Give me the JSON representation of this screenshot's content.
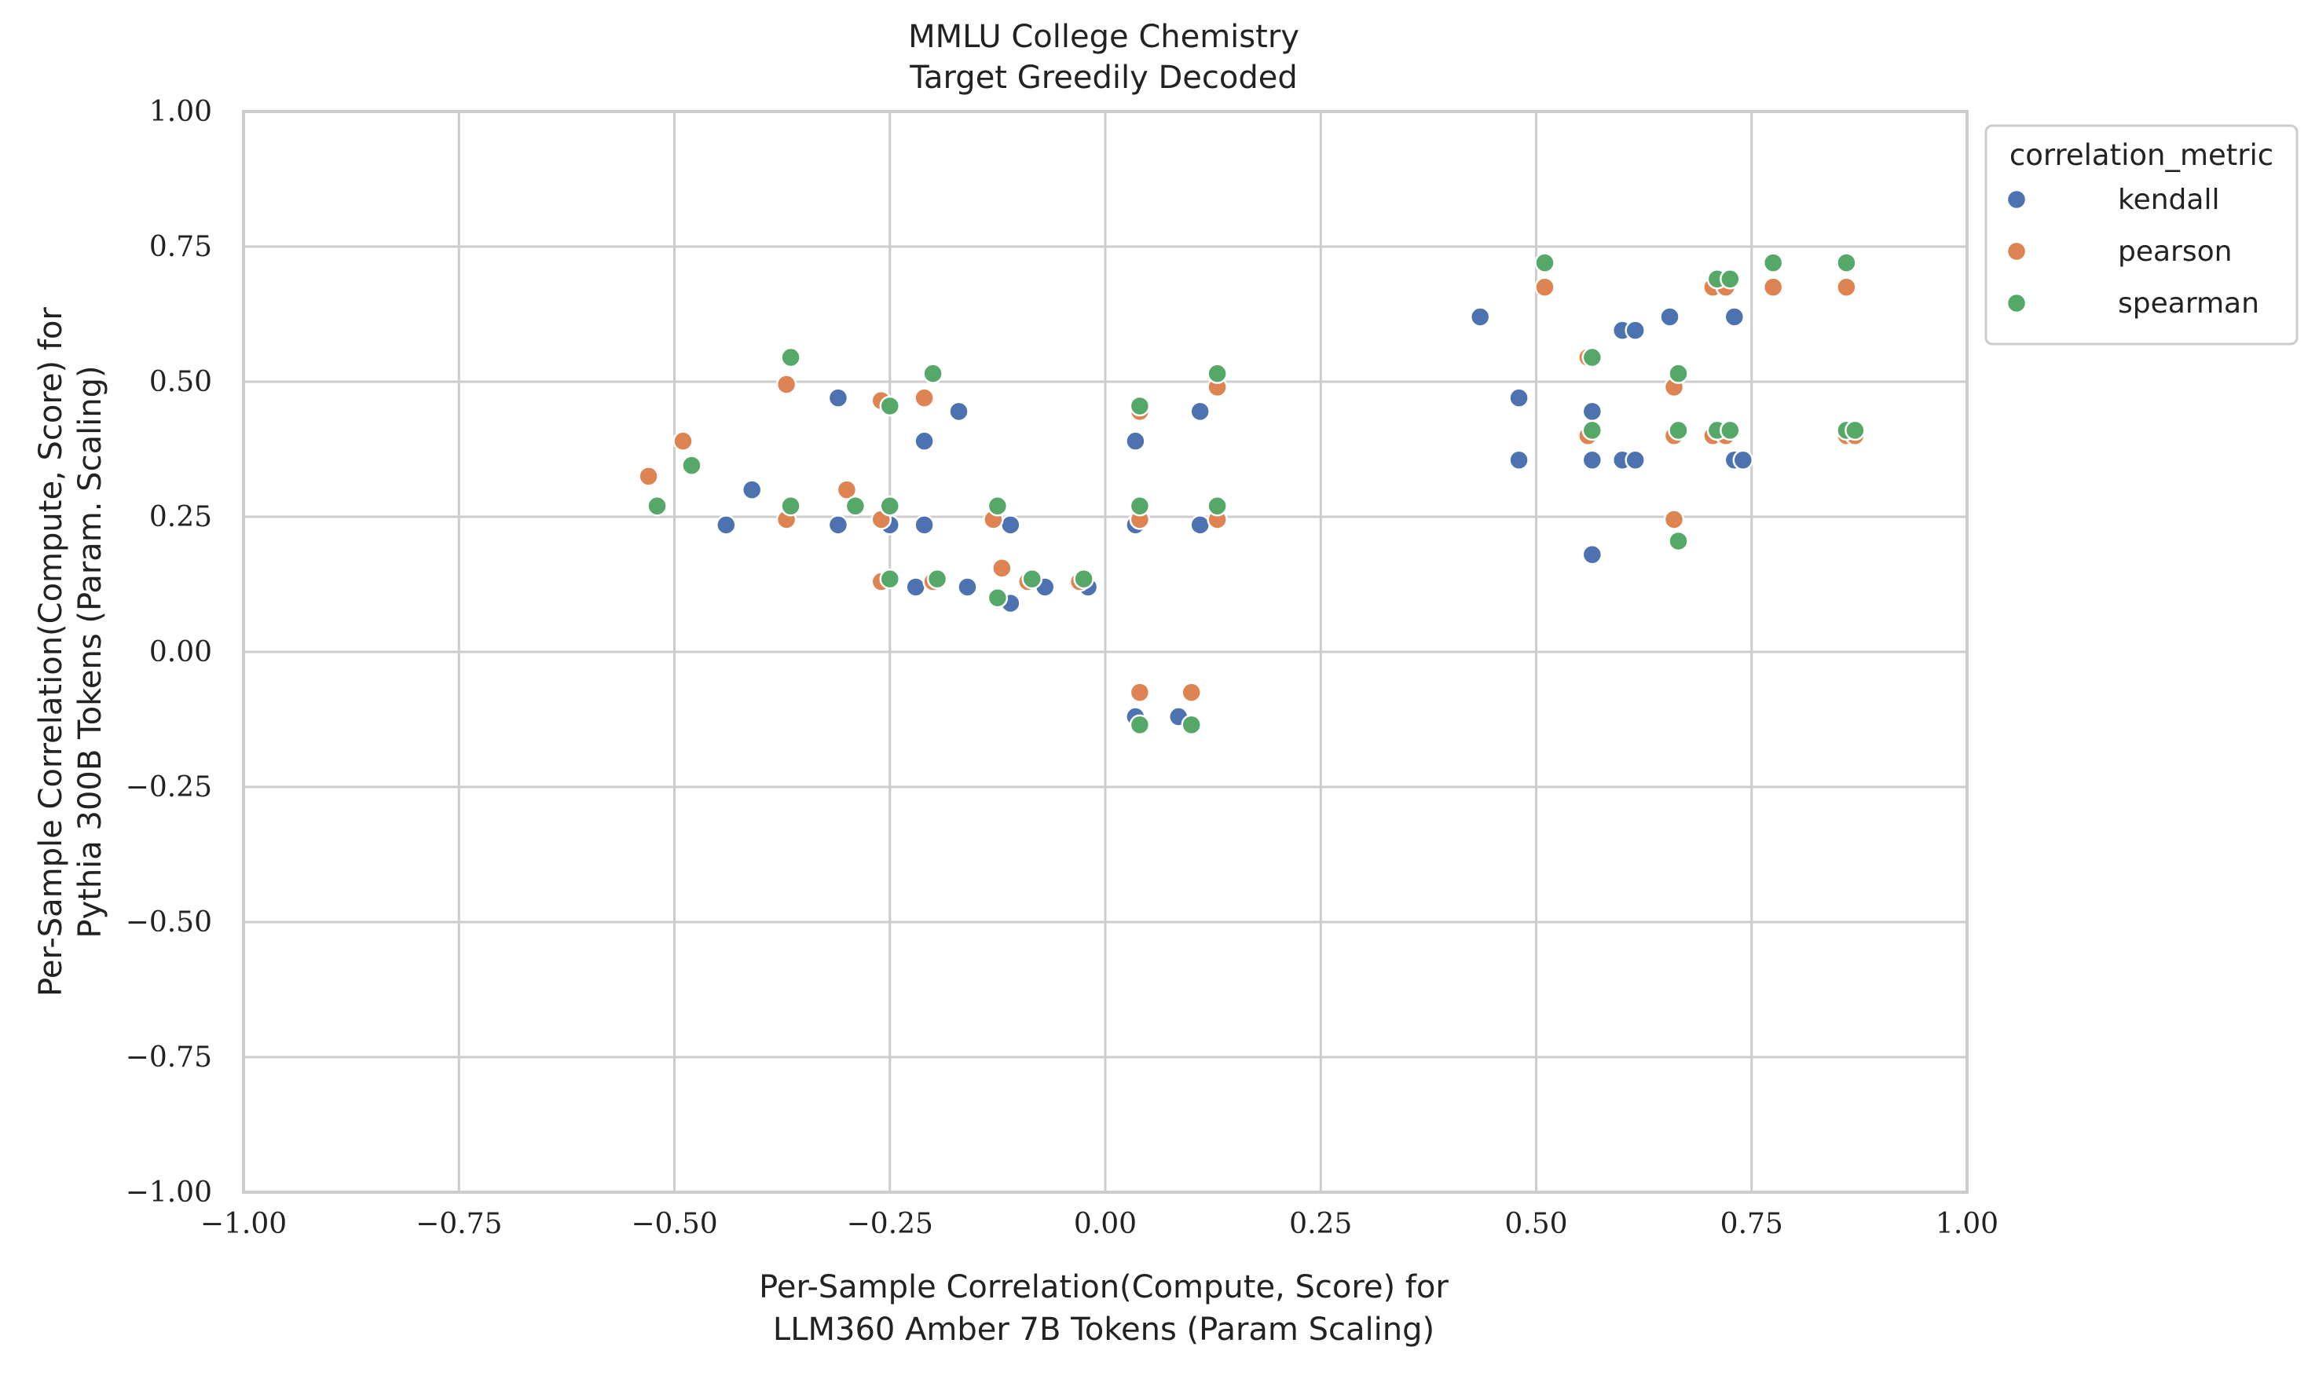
{
  "chart_data": {
    "type": "scatter",
    "title": [
      "MMLU College Chemistry",
      "Target Greedily Decoded"
    ],
    "xlabel": [
      "Per-Sample Correlation(Compute, Score) for",
      "LLM360 Amber 7B Tokens (Param Scaling)"
    ],
    "ylabel": [
      "Per-Sample Correlation(Compute, Score) for",
      "Pythia 300B Tokens (Param. Scaling)"
    ],
    "xlim": [
      -1.0,
      1.0
    ],
    "ylim": [
      -1.0,
      1.0
    ],
    "xticks": [
      -1.0,
      -0.75,
      -0.5,
      -0.25,
      0.0,
      0.25,
      0.5,
      0.75,
      1.0
    ],
    "yticks": [
      -1.0,
      -0.75,
      -0.5,
      -0.25,
      0.0,
      0.25,
      0.5,
      0.75,
      1.0
    ],
    "xtick_labels": [
      "−1.00",
      "−0.75",
      "−0.50",
      "−0.25",
      "0.00",
      "0.25",
      "0.50",
      "0.75",
      "1.00"
    ],
    "ytick_labels": [
      "−1.00",
      "−0.75",
      "−0.50",
      "−0.25",
      "0.00",
      "0.25",
      "0.50",
      "0.75",
      "1.00"
    ],
    "grid": true,
    "legend": {
      "title": "correlation_metric",
      "placement": "outside-top-right"
    },
    "series": [
      {
        "name": "kendall",
        "color": "#4c72b0",
        "points": [
          [
            -0.44,
            0.235
          ],
          [
            -0.41,
            0.3
          ],
          [
            -0.31,
            0.47
          ],
          [
            -0.31,
            0.235
          ],
          [
            -0.25,
            0.235
          ],
          [
            -0.21,
            0.39
          ],
          [
            -0.21,
            0.235
          ],
          [
            -0.22,
            0.12
          ],
          [
            -0.17,
            0.445
          ],
          [
            -0.16,
            0.12
          ],
          [
            -0.11,
            0.235
          ],
          [
            -0.11,
            0.09
          ],
          [
            -0.07,
            0.12
          ],
          [
            -0.02,
            0.12
          ],
          [
            0.035,
            0.39
          ],
          [
            0.035,
            0.235
          ],
          [
            0.035,
            -0.12
          ],
          [
            0.085,
            -0.12
          ],
          [
            0.11,
            0.445
          ],
          [
            0.11,
            0.235
          ],
          [
            0.435,
            0.62
          ],
          [
            0.48,
            0.47
          ],
          [
            0.48,
            0.355
          ],
          [
            0.565,
            0.445
          ],
          [
            0.565,
            0.355
          ],
          [
            0.565,
            0.18
          ],
          [
            0.6,
            0.595
          ],
          [
            0.6,
            0.355
          ],
          [
            0.615,
            0.595
          ],
          [
            0.615,
            0.355
          ],
          [
            0.655,
            0.62
          ],
          [
            0.73,
            0.62
          ],
          [
            0.73,
            0.355
          ],
          [
            0.74,
            0.355
          ]
        ]
      },
      {
        "name": "pearson",
        "color": "#dd8452",
        "points": [
          [
            -0.53,
            0.325
          ],
          [
            -0.49,
            0.39
          ],
          [
            -0.37,
            0.495
          ],
          [
            -0.37,
            0.245
          ],
          [
            -0.3,
            0.3
          ],
          [
            -0.26,
            0.465
          ],
          [
            -0.26,
            0.245
          ],
          [
            -0.26,
            0.13
          ],
          [
            -0.21,
            0.47
          ],
          [
            -0.2,
            0.13
          ],
          [
            -0.13,
            0.245
          ],
          [
            -0.12,
            0.155
          ],
          [
            -0.09,
            0.13
          ],
          [
            -0.03,
            0.13
          ],
          [
            0.04,
            0.445
          ],
          [
            0.04,
            0.245
          ],
          [
            0.04,
            -0.075
          ],
          [
            0.1,
            -0.075
          ],
          [
            0.13,
            0.49
          ],
          [
            0.13,
            0.245
          ],
          [
            0.51,
            0.675
          ],
          [
            0.56,
            0.545
          ],
          [
            0.56,
            0.4
          ],
          [
            0.66,
            0.49
          ],
          [
            0.66,
            0.4
          ],
          [
            0.66,
            0.245
          ],
          [
            0.705,
            0.675
          ],
          [
            0.705,
            0.4
          ],
          [
            0.72,
            0.675
          ],
          [
            0.72,
            0.4
          ],
          [
            0.775,
            0.675
          ],
          [
            0.86,
            0.675
          ],
          [
            0.86,
            0.4
          ],
          [
            0.87,
            0.4
          ]
        ]
      },
      {
        "name": "spearman",
        "color": "#55a868",
        "points": [
          [
            -0.52,
            0.27
          ],
          [
            -0.48,
            0.345
          ],
          [
            -0.365,
            0.545
          ],
          [
            -0.365,
            0.27
          ],
          [
            -0.29,
            0.27
          ],
          [
            -0.25,
            0.455
          ],
          [
            -0.25,
            0.27
          ],
          [
            -0.25,
            0.135
          ],
          [
            -0.2,
            0.515
          ],
          [
            -0.195,
            0.135
          ],
          [
            -0.125,
            0.27
          ],
          [
            -0.125,
            0.1
          ],
          [
            -0.085,
            0.135
          ],
          [
            -0.025,
            0.135
          ],
          [
            0.04,
            0.455
          ],
          [
            0.04,
            0.27
          ],
          [
            0.04,
            -0.135
          ],
          [
            0.1,
            -0.135
          ],
          [
            0.13,
            0.515
          ],
          [
            0.13,
            0.27
          ],
          [
            0.51,
            0.72
          ],
          [
            0.565,
            0.545
          ],
          [
            0.565,
            0.41
          ],
          [
            0.665,
            0.515
          ],
          [
            0.665,
            0.41
          ],
          [
            0.665,
            0.205
          ],
          [
            0.71,
            0.69
          ],
          [
            0.71,
            0.41
          ],
          [
            0.725,
            0.69
          ],
          [
            0.725,
            0.41
          ],
          [
            0.775,
            0.72
          ],
          [
            0.86,
            0.72
          ],
          [
            0.86,
            0.41
          ],
          [
            0.87,
            0.41
          ]
        ]
      }
    ]
  }
}
